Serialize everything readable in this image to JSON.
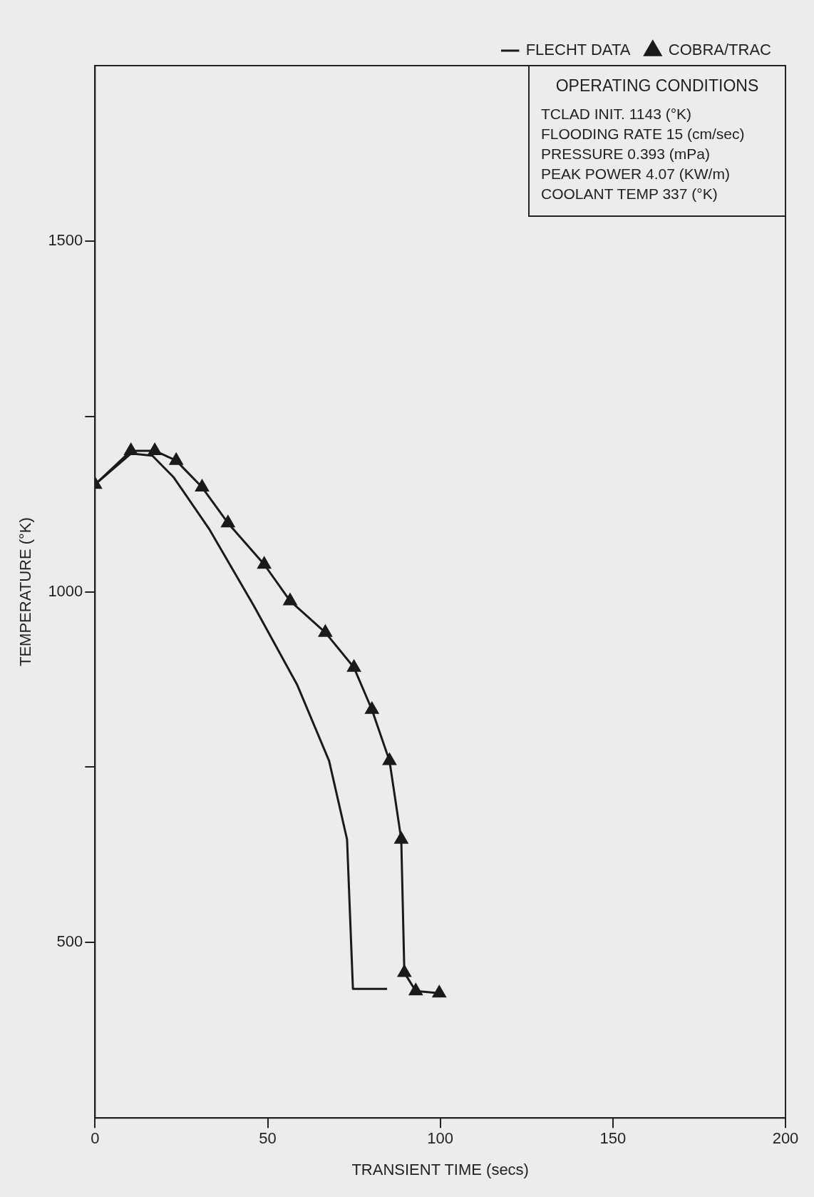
{
  "chart_data": {
    "type": "line",
    "xlabel": "TRANSIENT TIME (secs)",
    "ylabel": "TEMPERATURE (°K)",
    "xlim": [
      0,
      200
    ],
    "xticks": [
      0,
      50,
      100,
      150,
      200
    ],
    "ylim": [
      250,
      1750
    ],
    "yticks": [
      500,
      {
        "value": 750,
        "label": null
      },
      1000,
      {
        "value": 1250,
        "label": null
      },
      1500
    ],
    "grid": false,
    "legend": "top right",
    "line_style": "solid",
    "annotations": [
      "OPERATING CONDITIONS",
      "TCLAD INIT. 1143 (°K)",
      "FLOODING RATE 15 (cm/sec)",
      "PRESSURE 0.393 (mPa)",
      "PEAK POWER 4.07 (KW/m)",
      "COOLANT TEMP 337 (°K)"
    ],
    "series": [
      {
        "name": "FLECHT DATA",
        "color": "#1a1a1a",
        "marker": "none",
        "x": [
          0,
          10.4,
          16.6,
          22.8,
          33,
          46,
          58.5,
          67.8,
          73,
          74.7,
          84.6
        ],
        "values": [
          1153,
          1197,
          1194,
          1163,
          1090,
          980,
          868,
          759,
          647,
          434,
          434
        ]
      },
      {
        "name": "COBRA/TRAC",
        "color": "#1a1a1a",
        "marker": "triangle",
        "x": [
          0,
          10.4,
          17.3,
          23.5,
          31,
          38.5,
          49,
          56.5,
          66.7,
          75,
          80.2,
          85.3,
          88.7,
          89.6,
          92.9,
          99.7
        ],
        "values": [
          1153,
          1201,
          1201,
          1187,
          1149,
          1098,
          1039,
          987,
          942,
          892,
          832,
          759,
          647,
          457,
          431,
          428
        ]
      }
    ]
  }
}
